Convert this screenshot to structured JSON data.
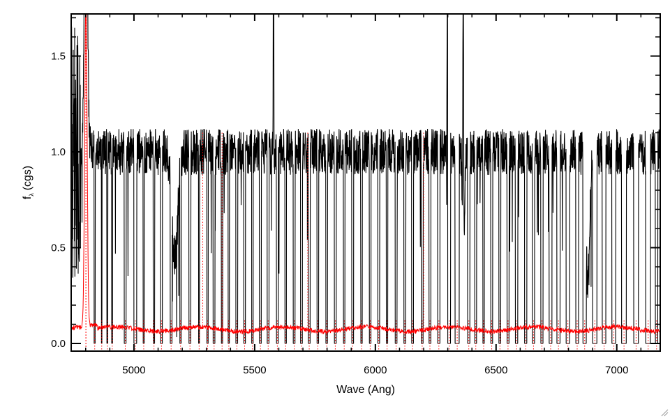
{
  "chart_data": {
    "type": "line",
    "title": "",
    "xlabel": "Wave (Ang)",
    "ylabel": "f",
    "ylabel_subscript": "λ",
    "ylabel_unit": "(cgs)",
    "xlim": [
      4740,
      7180
    ],
    "ylim": [
      -0.04,
      1.72
    ],
    "xticks": [
      5000,
      5500,
      6000,
      6500,
      7000
    ],
    "yticks": [
      0.0,
      0.5,
      1.0,
      1.5
    ],
    "ytick_labels": [
      "0.0",
      "0.5",
      "1.0",
      "1.5"
    ],
    "grid": false,
    "legend": "none",
    "series": [
      {
        "role": "flux",
        "color": "#000000",
        "style": "solid",
        "continuum": 1.0,
        "noise_amplitude": 0.12,
        "gap_bottom": 0.0,
        "emission_lines": [
          {
            "x": 4801,
            "peak": 1.72,
            "width": 12
          },
          {
            "x": 5578,
            "peak": 1.72,
            "width": 2
          },
          {
            "x": 6300,
            "peak": 1.72,
            "width": 4
          },
          {
            "x": 6364,
            "peak": 1.72,
            "width": 3
          }
        ],
        "absorption_features": [
          {
            "x": 5170,
            "depth": 0.55,
            "width": 30
          },
          {
            "x": 6365,
            "depth": 0.6,
            "width": 10
          },
          {
            "x": 6880,
            "depth": 0.7,
            "width": 20
          }
        ],
        "gaps": [
          [
            4835,
            4840
          ],
          [
            4865,
            4868
          ],
          [
            4888,
            4892
          ],
          [
            4908,
            4912
          ],
          [
            4960,
            4968
          ],
          [
            5000,
            5012
          ],
          [
            5038,
            5043
          ],
          [
            5080,
            5086
          ],
          [
            5110,
            5118
          ],
          [
            5150,
            5158
          ],
          [
            5190,
            5196
          ],
          [
            5228,
            5236
          ],
          [
            5268,
            5272
          ],
          [
            5302,
            5308
          ],
          [
            5328,
            5336
          ],
          [
            5362,
            5368
          ],
          [
            5390,
            5396
          ],
          [
            5422,
            5430
          ],
          [
            5455,
            5462
          ],
          [
            5488,
            5494
          ],
          [
            5520,
            5528
          ],
          [
            5552,
            5560
          ],
          [
            5590,
            5598
          ],
          [
            5625,
            5632
          ],
          [
            5660,
            5668
          ],
          [
            5690,
            5698
          ],
          [
            5722,
            5730
          ],
          [
            5758,
            5765
          ],
          [
            5795,
            5802
          ],
          [
            5830,
            5838
          ],
          [
            5868,
            5874
          ],
          [
            5902,
            5910
          ],
          [
            5940,
            5946
          ],
          [
            5975,
            5982
          ],
          [
            6010,
            6018
          ],
          [
            6045,
            6052
          ],
          [
            6082,
            6090
          ],
          [
            6118,
            6126
          ],
          [
            6150,
            6158
          ],
          [
            6190,
            6198
          ],
          [
            6222,
            6230
          ],
          [
            6258,
            6268
          ],
          [
            6300,
            6312
          ],
          [
            6330,
            6348
          ],
          [
            6382,
            6392
          ],
          [
            6412,
            6420
          ],
          [
            6445,
            6452
          ],
          [
            6478,
            6486
          ],
          [
            6512,
            6520
          ],
          [
            6545,
            6554
          ],
          [
            6580,
            6590
          ],
          [
            6618,
            6628
          ],
          [
            6650,
            6660
          ],
          [
            6685,
            6695
          ],
          [
            6720,
            6732
          ],
          [
            6752,
            6765
          ],
          [
            6790,
            6805
          ],
          [
            6830,
            6842
          ],
          [
            6860,
            6874
          ],
          [
            6900,
            6918
          ],
          [
            6940,
            6955
          ],
          [
            6980,
            6996
          ],
          [
            7020,
            7040
          ],
          [
            7070,
            7090
          ],
          [
            7120,
            7140
          ],
          [
            7160,
            7170
          ]
        ]
      },
      {
        "role": "error",
        "color": "#ff0000",
        "style": "solid+dotted",
        "base_level": 0.075,
        "noise_amplitude": 0.012,
        "spike": {
          "x": 4801,
          "peak": 1.72,
          "width": 10
        },
        "dotted_spikes": [
          5285,
          5365,
          5720,
          6200
        ]
      }
    ]
  }
}
